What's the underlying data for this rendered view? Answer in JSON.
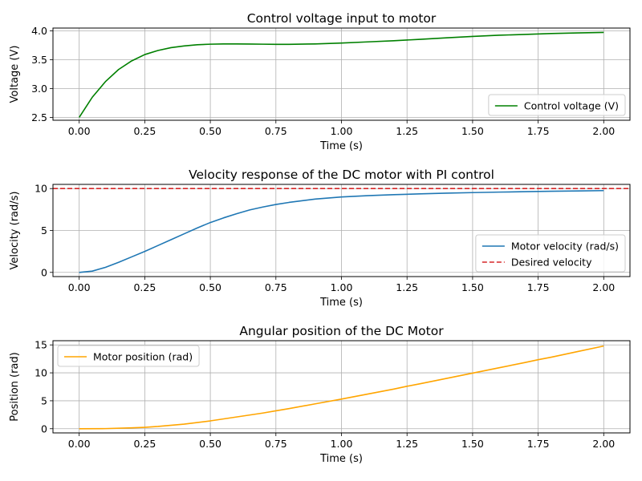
{
  "chart_data": [
    {
      "type": "line",
      "title": "Control voltage input to motor",
      "xlabel": "Time (s)",
      "ylabel": "Voltage (V)",
      "xlim": [
        -0.1,
        2.1
      ],
      "ylim": [
        2.45,
        4.05
      ],
      "xticks": [
        0.0,
        0.25,
        0.5,
        0.75,
        1.0,
        1.25,
        1.5,
        1.75,
        2.0
      ],
      "xtick_labels": [
        "0.00",
        "0.25",
        "0.50",
        "0.75",
        "1.00",
        "1.25",
        "1.50",
        "1.75",
        "2.00"
      ],
      "yticks": [
        2.5,
        3.0,
        3.5,
        4.0
      ],
      "ytick_labels": [
        "2.5",
        "3.0",
        "3.5",
        "4.0"
      ],
      "grid": true,
      "legend": "lower right",
      "series": [
        {
          "name": "Control voltage (V)",
          "color": "#008000",
          "dash": "solid",
          "x": [
            0.0,
            0.05,
            0.1,
            0.15,
            0.2,
            0.25,
            0.3,
            0.35,
            0.4,
            0.45,
            0.5,
            0.55,
            0.6,
            0.65,
            0.7,
            0.75,
            0.8,
            0.9,
            1.0,
            1.1,
            1.2,
            1.3,
            1.4,
            1.5,
            1.6,
            1.7,
            1.8,
            1.9,
            2.0
          ],
          "y": [
            2.5,
            2.85,
            3.12,
            3.33,
            3.48,
            3.59,
            3.66,
            3.71,
            3.74,
            3.76,
            3.77,
            3.775,
            3.775,
            3.772,
            3.77,
            3.768,
            3.768,
            3.775,
            3.79,
            3.81,
            3.83,
            3.855,
            3.88,
            3.905,
            3.925,
            3.94,
            3.955,
            3.965,
            3.975
          ]
        }
      ]
    },
    {
      "type": "line",
      "title": "Velocity response of the DC motor with PI control",
      "xlabel": "Time (s)",
      "ylabel": "Velocity (rad/s)",
      "xlim": [
        -0.1,
        2.1
      ],
      "ylim": [
        -0.5,
        10.5
      ],
      "xticks": [
        0.0,
        0.25,
        0.5,
        0.75,
        1.0,
        1.25,
        1.5,
        1.75,
        2.0
      ],
      "xtick_labels": [
        "0.00",
        "0.25",
        "0.50",
        "0.75",
        "1.00",
        "1.25",
        "1.50",
        "1.75",
        "2.00"
      ],
      "yticks": [
        0,
        5,
        10
      ],
      "ytick_labels": [
        "0",
        "5",
        "10"
      ],
      "grid": true,
      "legend": "lower right",
      "series": [
        {
          "name": "Motor velocity (rad/s)",
          "color": "#1f77b4",
          "dash": "solid",
          "x": [
            0.0,
            0.05,
            0.1,
            0.15,
            0.2,
            0.25,
            0.3,
            0.35,
            0.4,
            0.45,
            0.5,
            0.55,
            0.6,
            0.65,
            0.7,
            0.75,
            0.8,
            0.9,
            1.0,
            1.1,
            1.2,
            1.3,
            1.4,
            1.5,
            1.6,
            1.7,
            1.8,
            1.9,
            2.0
          ],
          "y": [
            0.0,
            0.15,
            0.6,
            1.2,
            1.85,
            2.5,
            3.2,
            3.9,
            4.6,
            5.3,
            5.95,
            6.5,
            7.0,
            7.45,
            7.8,
            8.1,
            8.35,
            8.75,
            9.0,
            9.15,
            9.27,
            9.37,
            9.45,
            9.52,
            9.58,
            9.63,
            9.68,
            9.72,
            9.76
          ]
        },
        {
          "name": "Desired velocity",
          "color": "#d62728",
          "dash": "dashed",
          "x": [
            -0.1,
            2.1
          ],
          "y": [
            10,
            10
          ]
        }
      ]
    },
    {
      "type": "line",
      "title": "Angular position of the DC Motor",
      "xlabel": "Time (s)",
      "ylabel": "Position (rad)",
      "xlim": [
        -0.1,
        2.1
      ],
      "ylim": [
        -0.75,
        15.75
      ],
      "xticks": [
        0.0,
        0.25,
        0.5,
        0.75,
        1.0,
        1.25,
        1.5,
        1.75,
        2.0
      ],
      "xtick_labels": [
        "0.00",
        "0.25",
        "0.50",
        "0.75",
        "1.00",
        "1.25",
        "1.50",
        "1.75",
        "2.00"
      ],
      "yticks": [
        0,
        5,
        10,
        15
      ],
      "ytick_labels": [
        "0",
        "5",
        "10",
        "15"
      ],
      "grid": true,
      "legend": "upper left",
      "series": [
        {
          "name": "Motor position (rad)",
          "color": "#ffa500",
          "dash": "solid",
          "x": [
            0.0,
            0.1,
            0.2,
            0.25,
            0.3,
            0.4,
            0.5,
            0.6,
            0.7,
            0.75,
            0.8,
            0.9,
            1.0,
            1.1,
            1.2,
            1.25,
            1.3,
            1.4,
            1.5,
            1.6,
            1.7,
            1.75,
            1.8,
            1.9,
            2.0
          ],
          "y": [
            0.0,
            0.02,
            0.15,
            0.25,
            0.4,
            0.82,
            1.4,
            2.1,
            2.8,
            3.2,
            3.6,
            4.45,
            5.3,
            6.2,
            7.1,
            7.6,
            8.05,
            9.0,
            9.95,
            10.9,
            11.85,
            12.35,
            12.8,
            13.8,
            14.8
          ]
        }
      ]
    }
  ]
}
